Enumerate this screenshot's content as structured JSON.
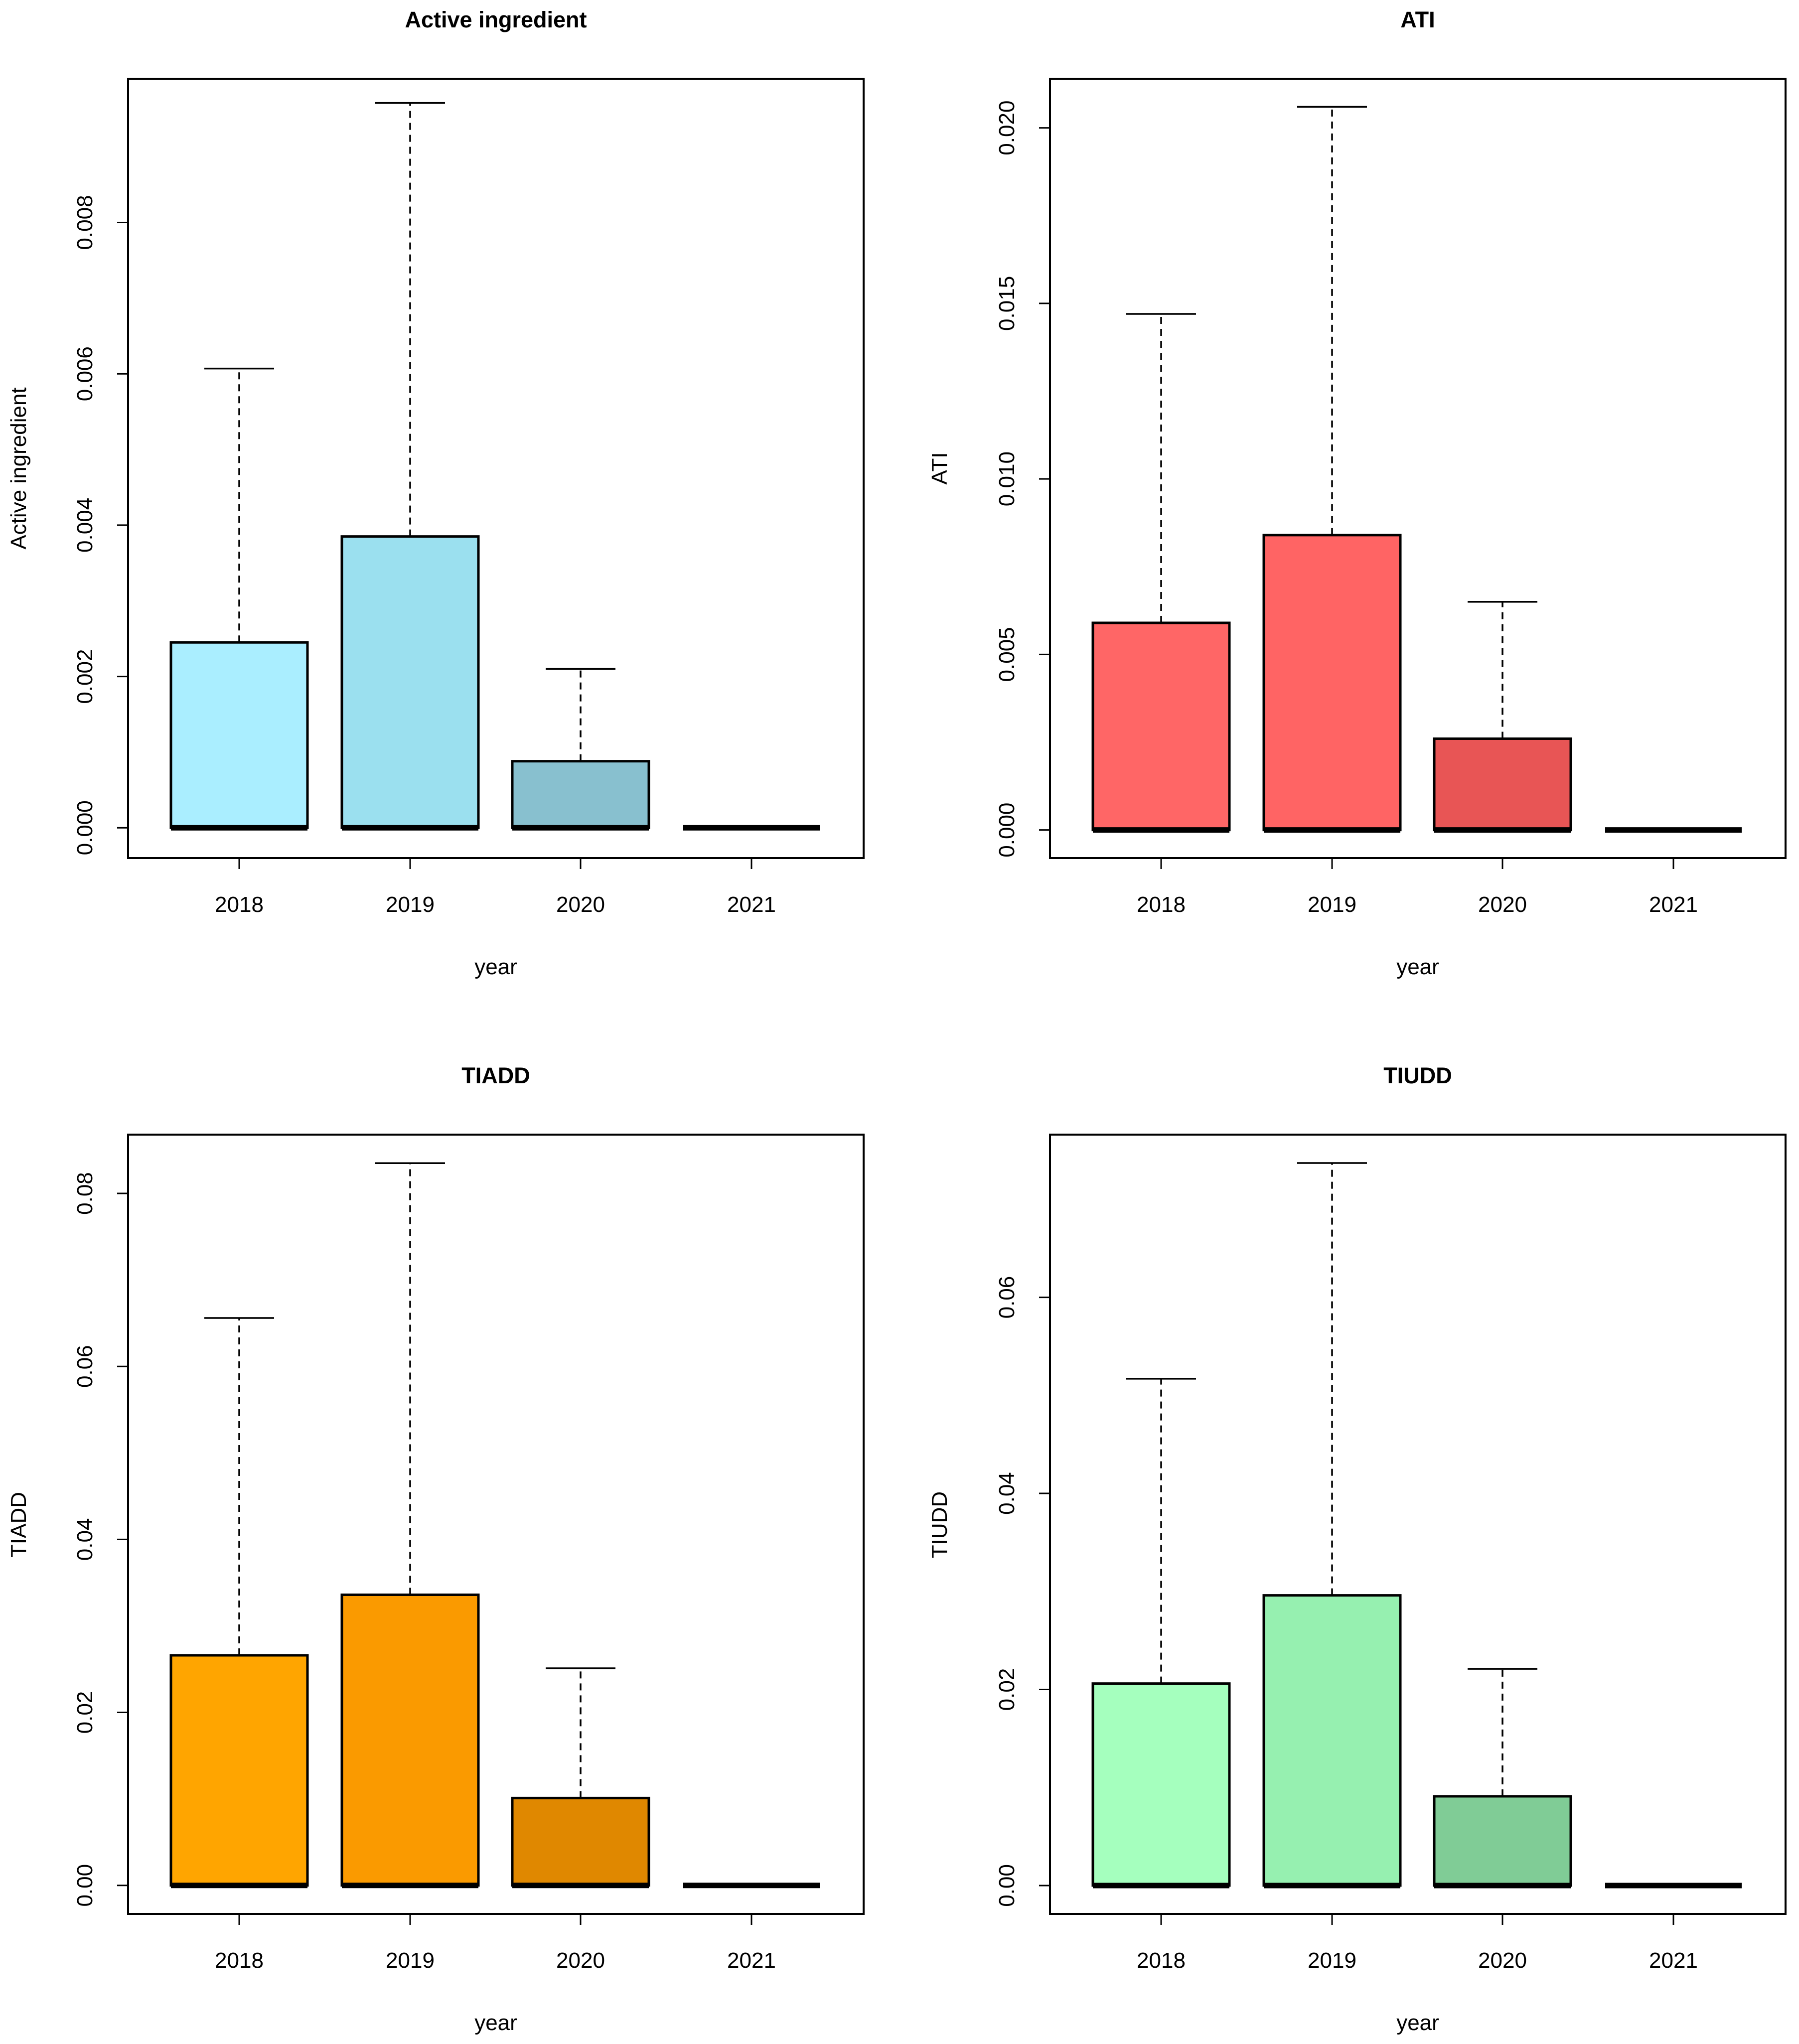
{
  "chart_data": [
    {
      "type": "boxplot",
      "title": "Active ingredient",
      "xlabel": "year",
      "ylabel": "Active ingredient",
      "categories": [
        "2018",
        "2019",
        "2020",
        "2021"
      ],
      "ylim": [
        -0.0004,
        0.0099
      ],
      "yticks": [
        0,
        0.002,
        0.004,
        0.006,
        0.008
      ],
      "ytick_labels": [
        "0.000",
        "0.002",
        "0.004",
        "0.006",
        "0.008"
      ],
      "colors": [
        "#aaeeff",
        "#9be0ef",
        "#88c0cf",
        "#88c0cf"
      ],
      "boxes": [
        {
          "min": 0,
          "q1": 0,
          "median": 0,
          "q3": 0.00245,
          "max": 0.00607
        },
        {
          "min": 0,
          "q1": 0,
          "median": 0,
          "q3": 0.00385,
          "max": 0.00958
        },
        {
          "min": 0,
          "q1": 0,
          "median": 0,
          "q3": 0.00088,
          "max": 0.0021
        },
        {
          "min": 0,
          "q1": 0,
          "median": 0,
          "q3": 0,
          "max": 0
        }
      ]
    },
    {
      "type": "boxplot",
      "title": "ATI",
      "xlabel": "year",
      "ylabel": "ATI",
      "categories": [
        "2018",
        "2019",
        "2020",
        "2021"
      ],
      "ylim": [
        -0.0008,
        0.0214
      ],
      "yticks": [
        0,
        0.005,
        0.01,
        0.015,
        0.02
      ],
      "ytick_labels": [
        "0.000",
        "0.005",
        "0.010",
        "0.015",
        "0.020"
      ],
      "colors": [
        "#ff6666",
        "#ff6464",
        "#e85555",
        "#e85555"
      ],
      "boxes": [
        {
          "min": 0,
          "q1": 0,
          "median": 0,
          "q3": 0.0059,
          "max": 0.0147
        },
        {
          "min": 0,
          "q1": 0,
          "median": 0,
          "q3": 0.0084,
          "max": 0.0206
        },
        {
          "min": 0,
          "q1": 0,
          "median": 0,
          "q3": 0.0026,
          "max": 0.0065
        },
        {
          "min": 0,
          "q1": 0,
          "median": 0,
          "q3": 0,
          "max": 0
        }
      ]
    },
    {
      "type": "boxplot",
      "title": "TIADD",
      "xlabel": "year",
      "ylabel": "TIADD",
      "categories": [
        "2018",
        "2019",
        "2020",
        "2021"
      ],
      "ylim": [
        -0.0033,
        0.0868
      ],
      "yticks": [
        0,
        0.02,
        0.04,
        0.06,
        0.08
      ],
      "ytick_labels": [
        "0.00",
        "0.02",
        "0.04",
        "0.06",
        "0.08"
      ],
      "colors": [
        "#ffa500",
        "#fa9a00",
        "#e08800",
        "#e08800"
      ],
      "boxes": [
        {
          "min": 0,
          "q1": 0,
          "median": 0,
          "q3": 0.0266,
          "max": 0.0656
        },
        {
          "min": 0,
          "q1": 0,
          "median": 0,
          "q3": 0.0336,
          "max": 0.0835
        },
        {
          "min": 0,
          "q1": 0,
          "median": 0,
          "q3": 0.0101,
          "max": 0.0251
        },
        {
          "min": 0,
          "q1": 0,
          "median": 0,
          "q3": 0,
          "max": 0
        }
      ]
    },
    {
      "type": "boxplot",
      "title": "TIUDD",
      "xlabel": "year",
      "ylabel": "TIUDD",
      "categories": [
        "2018",
        "2019",
        "2020",
        "2021"
      ],
      "ylim": [
        -0.0029,
        0.0766
      ],
      "yticks": [
        0,
        0.02,
        0.04,
        0.06
      ],
      "ytick_labels": [
        "0.00",
        "0.02",
        "0.04",
        "0.06"
      ],
      "colors": [
        "#a5ffbe",
        "#96f0b0",
        "#80cc96",
        "#80cc96"
      ],
      "boxes": [
        {
          "min": 0,
          "q1": 0,
          "median": 0,
          "q3": 0.0206,
          "max": 0.0517
        },
        {
          "min": 0,
          "q1": 0,
          "median": 0,
          "q3": 0.0296,
          "max": 0.0737
        },
        {
          "min": 0,
          "q1": 0,
          "median": 0,
          "q3": 0.0091,
          "max": 0.0221
        },
        {
          "min": 0,
          "q1": 0,
          "median": 0,
          "q3": 0,
          "max": 0
        }
      ]
    }
  ]
}
